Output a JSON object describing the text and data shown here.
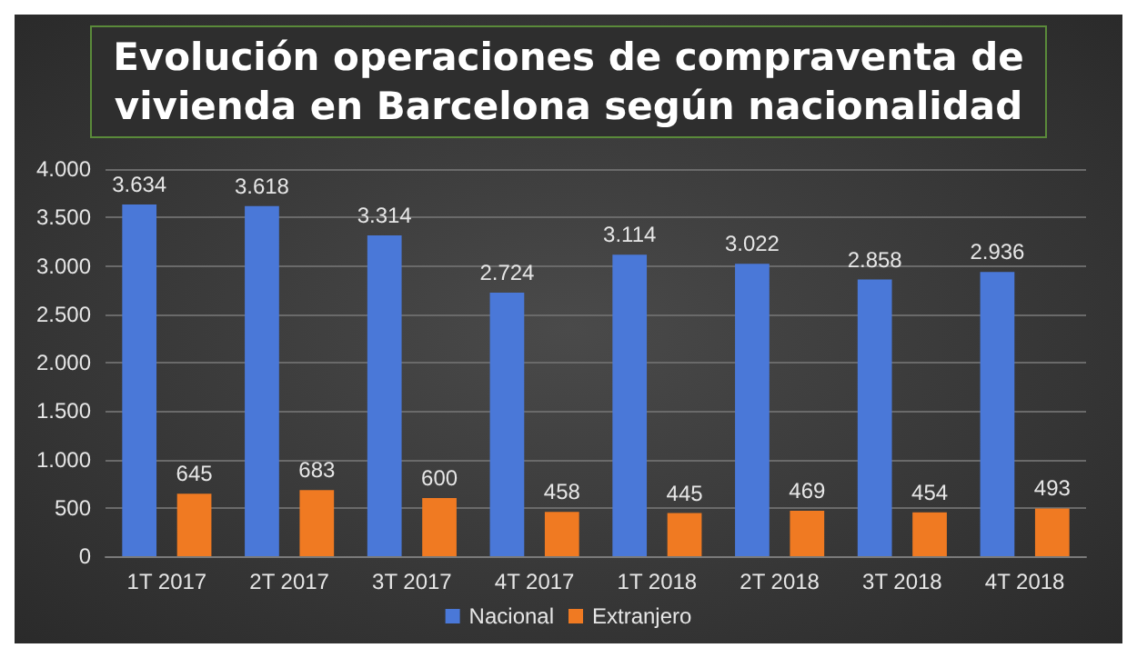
{
  "chart_data": {
    "type": "bar",
    "title": "Evolución operaciones de compraventa de\nvivienda en Barcelona según nacionalidad",
    "categories": [
      "1T 2017",
      "2T 2017",
      "3T 2017",
      "4T 2017",
      "1T 2018",
      "2T 2018",
      "3T 2018",
      "4T 2018"
    ],
    "series": [
      {
        "name": "Nacional",
        "color": "#4a78d8",
        "values": [
          3634,
          3618,
          3314,
          2724,
          3114,
          3022,
          2858,
          2936
        ],
        "value_labels": [
          "3.634",
          "3.618",
          "3.314",
          "2.724",
          "3.114",
          "3.022",
          "2.858",
          "2.936"
        ]
      },
      {
        "name": "Extranjero",
        "color": "#f07a22",
        "values": [
          645,
          683,
          600,
          458,
          445,
          469,
          454,
          493
        ],
        "value_labels": [
          "645",
          "683",
          "600",
          "458",
          "445",
          "469",
          "454",
          "493"
        ]
      }
    ],
    "ylim": [
      0,
      4000
    ],
    "yticks": [
      0,
      500,
      {
        "value": 1000,
        "label": "1.000"
      },
      {
        "value": 1500,
        "label": "1.500"
      },
      {
        "value": 2000,
        "label": "2.000"
      },
      {
        "value": 2500,
        "label": "2.500"
      },
      {
        "value": 3000,
        "label": "3.000"
      },
      {
        "value": 3500,
        "label": "3.500"
      },
      {
        "value": 4000,
        "label": "4.000"
      }
    ],
    "grid": "y",
    "legend": "bottom"
  }
}
